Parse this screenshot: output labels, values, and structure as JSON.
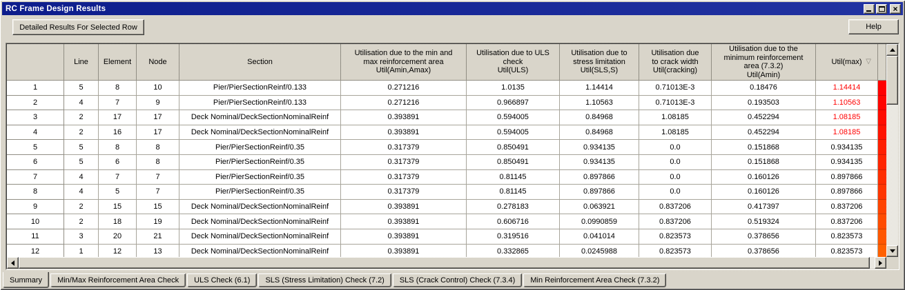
{
  "window": {
    "title": "RC Frame Design Results"
  },
  "titlebar": {
    "buttons": {
      "minimize": "minimize",
      "maximize": "maximize",
      "close": "close"
    }
  },
  "toolbar": {
    "detailed_label": "Detailed Results For Selected Row",
    "help_label": "Help"
  },
  "colors": {
    "flag_text": "#ff0000",
    "bar_top": "#ff0000",
    "bar_bottom": "#ff6600",
    "titlebar": "#0d1d8c"
  },
  "table": {
    "sort_icon": "▽",
    "columns": [
      {
        "label": ""
      },
      {
        "label": "Line"
      },
      {
        "label": "Element"
      },
      {
        "label": "Node"
      },
      {
        "label": "Section"
      },
      {
        "label": "Utilisation due to the min and\nmax reinforcement area\nUtil(Amin,Amax)"
      },
      {
        "label": "Utilisation due to ULS\ncheck\nUtil(ULS)"
      },
      {
        "label": "Utilisation due to\nstress limitation\nUtil(SLS,S)"
      },
      {
        "label": "Utilisation due\nto crack width\nUtil(cracking)"
      },
      {
        "label": "Utilisation due to the\nminimum reinforcement\narea (7.3.2)\nUtil(Amin)"
      },
      {
        "label": "Util(max)"
      }
    ],
    "rows": [
      {
        "num": "1",
        "line": "5",
        "element": "8",
        "node": "10",
        "section": "Pier/PierSectionReinf/0.133",
        "amin_amax": "0.271216",
        "uls": "1.0135",
        "sls": "1.14414",
        "crack": "0.71013E-3",
        "amin": "0.18476",
        "max": "1.14414",
        "max_flagged": true,
        "bar_color": "#ff0000"
      },
      {
        "num": "2",
        "line": "4",
        "element": "7",
        "node": "9",
        "section": "Pier/PierSectionReinf/0.133",
        "amin_amax": "0.271216",
        "uls": "0.966897",
        "sls": "1.10563",
        "crack": "0.71013E-3",
        "amin": "0.193503",
        "max": "1.10563",
        "max_flagged": true,
        "bar_color": "#ff0500"
      },
      {
        "num": "3",
        "line": "2",
        "element": "17",
        "node": "17",
        "section": "Deck Nominal/DeckSectionNominalReinf",
        "amin_amax": "0.393891",
        "uls": "0.594005",
        "sls": "0.84968",
        "crack": "1.08185",
        "amin": "0.452294",
        "max": "1.08185",
        "max_flagged": true,
        "bar_color": "#ff0d00"
      },
      {
        "num": "4",
        "line": "2",
        "element": "16",
        "node": "17",
        "section": "Deck Nominal/DeckSectionNominalReinf",
        "amin_amax": "0.393891",
        "uls": "0.594005",
        "sls": "0.84968",
        "crack": "1.08185",
        "amin": "0.452294",
        "max": "1.08185",
        "max_flagged": true,
        "bar_color": "#ff1300"
      },
      {
        "num": "5",
        "line": "5",
        "element": "8",
        "node": "8",
        "section": "Pier/PierSectionReinf/0.35",
        "amin_amax": "0.317379",
        "uls": "0.850491",
        "sls": "0.934135",
        "crack": "0.0",
        "amin": "0.151868",
        "max": "0.934135",
        "max_flagged": false,
        "bar_color": "#ff1f00"
      },
      {
        "num": "6",
        "line": "5",
        "element": "6",
        "node": "8",
        "section": "Pier/PierSectionReinf/0.35",
        "amin_amax": "0.317379",
        "uls": "0.850491",
        "sls": "0.934135",
        "crack": "0.0",
        "amin": "0.151868",
        "max": "0.934135",
        "max_flagged": false,
        "bar_color": "#ff2500"
      },
      {
        "num": "7",
        "line": "4",
        "element": "7",
        "node": "7",
        "section": "Pier/PierSectionReinf/0.35",
        "amin_amax": "0.317379",
        "uls": "0.81145",
        "sls": "0.897866",
        "crack": "0.0",
        "amin": "0.160126",
        "max": "0.897866",
        "max_flagged": false,
        "bar_color": "#ff2f00"
      },
      {
        "num": "8",
        "line": "4",
        "element": "5",
        "node": "7",
        "section": "Pier/PierSectionReinf/0.35",
        "amin_amax": "0.317379",
        "uls": "0.81145",
        "sls": "0.897866",
        "crack": "0.0",
        "amin": "0.160126",
        "max": "0.897866",
        "max_flagged": false,
        "bar_color": "#ff3600"
      },
      {
        "num": "9",
        "line": "2",
        "element": "15",
        "node": "15",
        "section": "Deck Nominal/DeckSectionNominalReinf",
        "amin_amax": "0.393891",
        "uls": "0.278183",
        "sls": "0.063921",
        "crack": "0.837206",
        "amin": "0.417397",
        "max": "0.837206",
        "max_flagged": false,
        "bar_color": "#ff4400"
      },
      {
        "num": "10",
        "line": "2",
        "element": "18",
        "node": "19",
        "section": "Deck Nominal/DeckSectionNominalReinf",
        "amin_amax": "0.393891",
        "uls": "0.606716",
        "sls": "0.0990859",
        "crack": "0.837206",
        "amin": "0.519324",
        "max": "0.837206",
        "max_flagged": false,
        "bar_color": "#ff4c00"
      },
      {
        "num": "11",
        "line": "3",
        "element": "20",
        "node": "21",
        "section": "Deck Nominal/DeckSectionNominalReinf",
        "amin_amax": "0.393891",
        "uls": "0.319516",
        "sls": "0.041014",
        "crack": "0.823573",
        "amin": "0.378656",
        "max": "0.823573",
        "max_flagged": false,
        "bar_color": "#ff5700"
      },
      {
        "num": "12",
        "line": "1",
        "element": "12",
        "node": "13",
        "section": "Deck Nominal/DeckSectionNominalReinf",
        "amin_amax": "0.393891",
        "uls": "0.332865",
        "sls": "0.0245988",
        "crack": "0.823573",
        "amin": "0.378656",
        "max": "0.823573",
        "max_flagged": false,
        "bar_color": "#ff6000"
      }
    ]
  },
  "tabs": [
    {
      "label": "Summary",
      "active": true
    },
    {
      "label": "Min/Max Reinforcement Area Check",
      "active": false
    },
    {
      "label": "ULS Check (6.1)",
      "active": false
    },
    {
      "label": "SLS (Stress Limitation) Check (7.2)",
      "active": false
    },
    {
      "label": "SLS (Crack Control) Check (7.3.4)",
      "active": false
    },
    {
      "label": "Min Reinforcement Area Check (7.3.2)",
      "active": false
    }
  ]
}
